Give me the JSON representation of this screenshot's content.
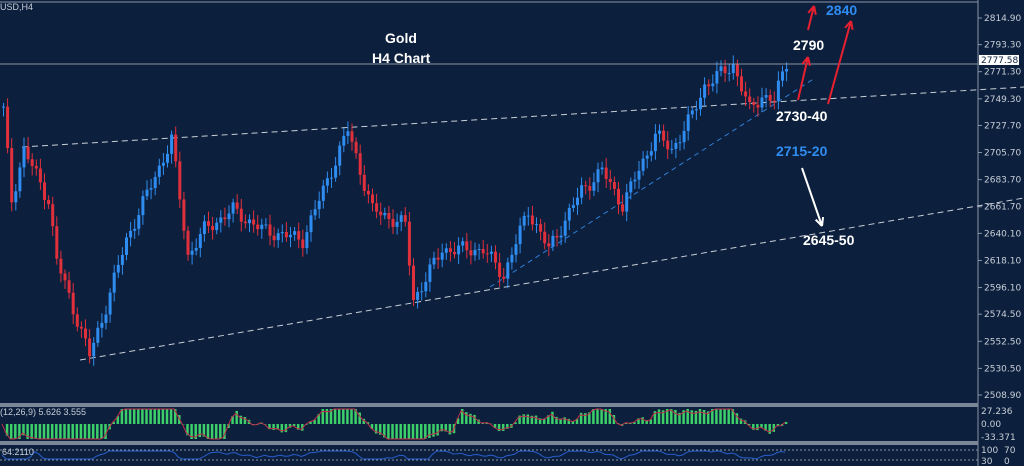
{
  "symbol": "USD,H4",
  "title": [
    "Gold",
    "H4  Chart"
  ],
  "current_price": "2777.58",
  "chart_data": {
    "type": "candlestick",
    "title": "Gold H4 Chart",
    "ylim": [
      2508.9,
      2814.9
    ],
    "y_ticks": [
      "2814.90",
      "2793.30",
      "2771.30",
      "2749.30",
      "2727.70",
      "2705.70",
      "2683.70",
      "2661.70",
      "2640.10",
      "2618.10",
      "2596.10",
      "2574.50",
      "2552.50",
      "2530.50",
      "2508.90"
    ],
    "close_anchors": [
      [
        0,
        2740
      ],
      [
        2,
        2667
      ],
      [
        5,
        2708
      ],
      [
        11,
        2667
      ],
      [
        13,
        2618
      ],
      [
        21,
        2541
      ],
      [
        24,
        2570
      ],
      [
        30,
        2635
      ],
      [
        41,
        2716
      ],
      [
        45,
        2622
      ],
      [
        49,
        2643
      ],
      [
        56,
        2659
      ],
      [
        63,
        2643
      ],
      [
        73,
        2635
      ],
      [
        78,
        2675
      ],
      [
        84,
        2724
      ],
      [
        90,
        2659
      ],
      [
        98,
        2647
      ],
      [
        100,
        2586
      ],
      [
        107,
        2627
      ],
      [
        117,
        2627
      ],
      [
        122,
        2606
      ],
      [
        128,
        2659
      ],
      [
        133,
        2627
      ],
      [
        141,
        2675
      ],
      [
        146,
        2691
      ],
      [
        151,
        2663
      ],
      [
        159,
        2720
      ],
      [
        163,
        2708
      ],
      [
        168,
        2736
      ],
      [
        171,
        2760
      ],
      [
        178,
        2777
      ],
      [
        182,
        2740
      ],
      [
        185,
        2752
      ],
      [
        188,
        2748
      ],
      [
        191,
        2779
      ]
    ],
    "annotations": [
      {
        "text": "2840",
        "color": "#2f8cf0"
      },
      {
        "text": "2790",
        "color": "#ffffff"
      },
      {
        "text": "2730-40",
        "color": "#ffffff"
      },
      {
        "text": "2715-20",
        "color": "#2f8cf0"
      },
      {
        "text": "2645-50",
        "color": "#ffffff"
      }
    ],
    "macd": {
      "label": "(12,26,9) 5.626 3.555",
      "ticks": [
        "27.236",
        "0.00",
        "-33.371"
      ]
    },
    "rsi": {
      "label": "64.2110",
      "ticks": [
        "100",
        "70",
        "30",
        "0"
      ]
    }
  }
}
